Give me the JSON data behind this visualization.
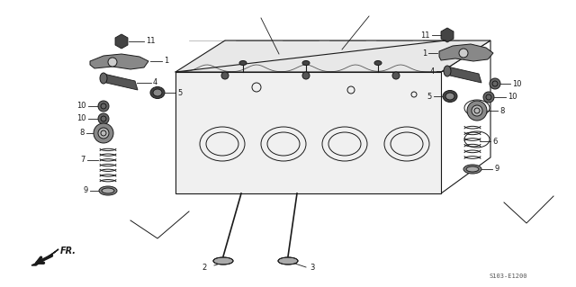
{
  "part_code": "S103-E1200",
  "background_color": "#ffffff",
  "line_color": "#1a1a1a",
  "figsize": [
    6.4,
    3.19
  ],
  "dpi": 100,
  "lw_main": 0.8,
  "lw_thin": 0.5,
  "lw_leader": 0.6,
  "fontsize_label": 6.0,
  "fontsize_code": 5.0
}
